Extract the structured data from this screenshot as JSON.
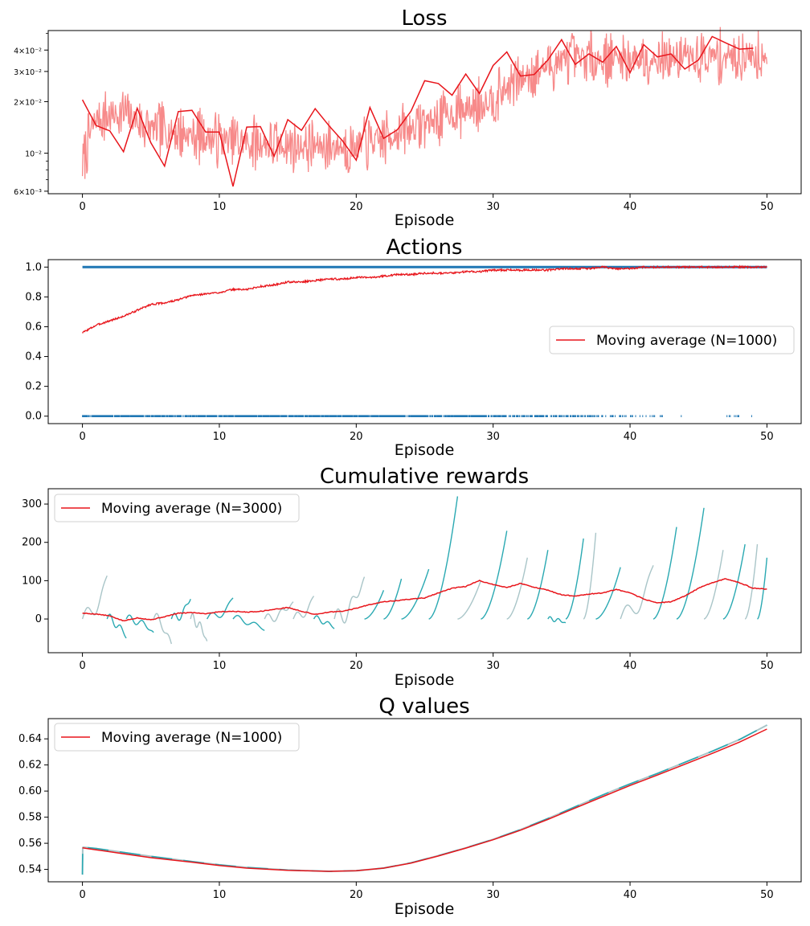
{
  "chart_data": [
    {
      "type": "line",
      "title": "Loss",
      "xlabel": "Episode",
      "ylabel": "",
      "yscale": "log",
      "xlim": [
        -2.5,
        52.5
      ],
      "ylim": [
        0.0058,
        0.052
      ],
      "xticks": [
        0,
        10,
        20,
        30,
        40,
        50
      ],
      "xtick_labels": [
        "0",
        "10",
        "20",
        "30",
        "40",
        "50"
      ],
      "yticks": [
        0.006,
        0.01,
        0.02,
        0.03,
        0.04
      ],
      "ytick_labels": [
        "6×10⁻³",
        "10⁻²",
        "2×10⁻²",
        "3×10⁻²",
        "4×10⁻²"
      ],
      "grid": false,
      "colors": {
        "raw": "#f78a8a",
        "avg": "#e8151b"
      },
      "series": [
        {
          "style": "raw",
          "trend": [
            [
              0,
              0.0085
            ],
            [
              1,
              0.016
            ],
            [
              3,
              0.017
            ],
            [
              5,
              0.014
            ],
            [
              10,
              0.012
            ],
            [
              15,
              0.011
            ],
            [
              20,
              0.011
            ],
            [
              22,
              0.012
            ],
            [
              25,
              0.015
            ],
            [
              28,
              0.018
            ],
            [
              30,
              0.021
            ],
            [
              33,
              0.03
            ],
            [
              35,
              0.035
            ],
            [
              40,
              0.036
            ],
            [
              45,
              0.036
            ],
            [
              50,
              0.038
            ]
          ]
        },
        {
          "style": "avg",
          "x": [
            0,
            1,
            2,
            3,
            4,
            5,
            6,
            7,
            8,
            9,
            10,
            11,
            12,
            13,
            14,
            15,
            16,
            17,
            18,
            19,
            20,
            21,
            22,
            23,
            24,
            25,
            26,
            27,
            28,
            29,
            30,
            31,
            32,
            33,
            34,
            35,
            36,
            37,
            38,
            39,
            40,
            41,
            42,
            43,
            44,
            45,
            46,
            47,
            48,
            49
          ],
          "y": [
            0.0205,
            0.0145,
            0.0135,
            0.0102,
            0.0183,
            0.0115,
            0.0084,
            0.0175,
            0.0178,
            0.0133,
            0.0133,
            0.0064,
            0.0142,
            0.0143,
            0.0096,
            0.0157,
            0.0136,
            0.0182,
            0.0145,
            0.0118,
            0.0091,
            0.0185,
            0.0122,
            0.0137,
            0.0176,
            0.0265,
            0.0255,
            0.0218,
            0.029,
            0.0223,
            0.0325,
            0.039,
            0.0282,
            0.0288,
            0.035,
            0.046,
            0.033,
            0.038,
            0.034,
            0.042,
            0.0295,
            0.043,
            0.0365,
            0.038,
            0.031,
            0.035,
            0.048,
            0.044,
            0.0405,
            0.041
          ]
        }
      ]
    },
    {
      "type": "scatter",
      "title": "Actions",
      "xlabel": "Episode",
      "ylabel": "",
      "xlim": [
        -2.5,
        52.5
      ],
      "ylim": [
        -0.05,
        1.05
      ],
      "xticks": [
        0,
        10,
        20,
        30,
        40,
        50
      ],
      "xtick_labels": [
        "0",
        "10",
        "20",
        "30",
        "40",
        "50"
      ],
      "yticks": [
        0,
        0.2,
        0.4,
        0.6,
        0.8,
        1.0
      ],
      "ytick_labels": [
        "0.0",
        "0.2",
        "0.4",
        "0.6",
        "0.8",
        "1.0"
      ],
      "grid": false,
      "legend": {
        "position": "right",
        "entries": [
          {
            "label": "Moving average (N=1000)",
            "color": "#e8151b"
          }
        ]
      },
      "colors": {
        "points": "#1f77b4",
        "avg": "#e8151b"
      },
      "series": [
        {
          "style": "points-high",
          "y": 1.0,
          "x_range": [
            0,
            50
          ]
        },
        {
          "style": "points-low",
          "y": 0.0,
          "x_range": [
            0,
            50
          ]
        },
        {
          "style": "avg",
          "x": [
            0,
            1,
            2,
            3,
            4,
            5,
            6,
            7,
            8,
            9,
            10,
            11,
            12,
            13,
            14,
            15,
            16,
            17,
            18,
            19,
            20,
            21,
            22,
            23,
            24,
            25,
            26,
            27,
            28,
            29,
            30,
            31,
            32,
            33,
            34,
            35,
            36,
            37,
            38,
            39,
            40,
            41,
            42,
            43,
            44,
            45,
            46,
            47,
            48,
            49,
            50
          ],
          "y": [
            0.56,
            0.61,
            0.64,
            0.67,
            0.71,
            0.75,
            0.76,
            0.78,
            0.81,
            0.82,
            0.83,
            0.85,
            0.85,
            0.87,
            0.88,
            0.9,
            0.9,
            0.91,
            0.92,
            0.92,
            0.93,
            0.93,
            0.94,
            0.95,
            0.95,
            0.96,
            0.96,
            0.96,
            0.97,
            0.97,
            0.98,
            0.98,
            0.98,
            0.98,
            0.98,
            0.99,
            0.99,
            0.99,
            1.0,
            0.99,
            0.99,
            1.0,
            1.0,
            1.0,
            1.0,
            1.0,
            1.0,
            1.0,
            1.0,
            1.0,
            1.0
          ]
        }
      ]
    },
    {
      "type": "line",
      "title": "Cumulative rewards",
      "xlabel": "Episode",
      "ylabel": "",
      "xlim": [
        -2.5,
        52.5
      ],
      "ylim": [
        -88,
        340
      ],
      "xticks": [
        0,
        10,
        20,
        30,
        40,
        50
      ],
      "xtick_labels": [
        "0",
        "10",
        "20",
        "30",
        "40",
        "50"
      ],
      "yticks": [
        0,
        100,
        200,
        300
      ],
      "ytick_labels": [
        "0",
        "100",
        "200",
        "300"
      ],
      "grid": false,
      "legend": {
        "position": "top-left",
        "entries": [
          {
            "label": "Moving average (N=3000)",
            "color": "#e8151b"
          }
        ]
      },
      "colors": {
        "teal": "#2aa9b2",
        "gray": "#a9c5c8",
        "avg": "#e8151b"
      },
      "episodes": [
        {
          "start": 0,
          "end": 1.8,
          "color": "gray",
          "shape": "wave",
          "end_value": 113
        },
        {
          "start": 1.8,
          "end": 3.2,
          "color": "teal",
          "shape": "wave",
          "end_value": -50
        },
        {
          "start": 3.2,
          "end": 5.2,
          "color": "teal",
          "shape": "wave",
          "end_value": -35
        },
        {
          "start": 5.2,
          "end": 6.5,
          "color": "gray",
          "shape": "wave",
          "end_value": -65
        },
        {
          "start": 6.5,
          "end": 7.9,
          "color": "teal",
          "shape": "wave",
          "end_value": 52
        },
        {
          "start": 7.9,
          "end": 9.1,
          "color": "gray",
          "shape": "wave",
          "end_value": -58
        },
        {
          "start": 9.1,
          "end": 11.0,
          "color": "teal",
          "shape": "wave",
          "end_value": 55
        },
        {
          "start": 11.0,
          "end": 13.3,
          "color": "teal",
          "shape": "wave",
          "end_value": -30
        },
        {
          "start": 13.3,
          "end": 15.4,
          "color": "gray",
          "shape": "wave",
          "end_value": 45
        },
        {
          "start": 15.4,
          "end": 16.9,
          "color": "gray",
          "shape": "wave",
          "end_value": 60
        },
        {
          "start": 16.9,
          "end": 18.4,
          "color": "teal",
          "shape": "wave",
          "end_value": -25
        },
        {
          "start": 18.4,
          "end": 20.6,
          "color": "gray",
          "shape": "wave",
          "end_value": 110
        },
        {
          "start": 20.6,
          "end": 22.0,
          "color": "teal",
          "shape": "ramp",
          "end_value": 75
        },
        {
          "start": 22.0,
          "end": 23.3,
          "color": "teal",
          "shape": "ramp",
          "end_value": 105
        },
        {
          "start": 23.3,
          "end": 25.3,
          "color": "teal",
          "shape": "ramp",
          "end_value": 130
        },
        {
          "start": 25.3,
          "end": 27.4,
          "color": "teal",
          "shape": "ramp",
          "end_value": 320
        },
        {
          "start": 27.4,
          "end": 29.1,
          "color": "gray",
          "shape": "ramp",
          "end_value": 100
        },
        {
          "start": 29.1,
          "end": 31.0,
          "color": "teal",
          "shape": "ramp",
          "end_value": 230
        },
        {
          "start": 31.0,
          "end": 32.5,
          "color": "gray",
          "shape": "ramp",
          "end_value": 160
        },
        {
          "start": 32.5,
          "end": 34.0,
          "color": "teal",
          "shape": "ramp",
          "end_value": 180
        },
        {
          "start": 34.0,
          "end": 35.3,
          "color": "teal",
          "shape": "wave",
          "end_value": -10
        },
        {
          "start": 35.3,
          "end": 36.6,
          "color": "teal",
          "shape": "ramp",
          "end_value": 210
        },
        {
          "start": 36.6,
          "end": 37.5,
          "color": "gray",
          "shape": "ramp",
          "end_value": 225
        },
        {
          "start": 37.5,
          "end": 39.3,
          "color": "teal",
          "shape": "ramp",
          "end_value": 135
        },
        {
          "start": 39.3,
          "end": 41.7,
          "color": "gray",
          "shape": "wave",
          "end_value": 140
        },
        {
          "start": 41.7,
          "end": 43.4,
          "color": "teal",
          "shape": "ramp",
          "end_value": 240
        },
        {
          "start": 43.4,
          "end": 45.4,
          "color": "teal",
          "shape": "ramp",
          "end_value": 290
        },
        {
          "start": 45.4,
          "end": 46.8,
          "color": "gray",
          "shape": "ramp",
          "end_value": 180
        },
        {
          "start": 46.8,
          "end": 48.4,
          "color": "teal",
          "shape": "ramp",
          "end_value": 195
        },
        {
          "start": 48.4,
          "end": 49.3,
          "color": "gray",
          "shape": "ramp",
          "end_value": 195
        },
        {
          "start": 49.3,
          "end": 50.0,
          "color": "teal",
          "shape": "ramp",
          "end_value": 160
        }
      ],
      "moving_average": {
        "x": [
          0,
          1,
          2,
          3,
          4,
          5,
          6,
          7,
          8,
          9,
          10,
          11,
          12,
          13,
          14,
          15,
          16,
          17,
          18,
          19,
          20,
          21,
          22,
          23,
          24,
          25,
          26,
          27,
          28,
          29,
          30,
          31,
          32,
          33,
          34,
          35,
          36,
          37,
          38,
          39,
          40,
          41,
          42,
          43,
          44,
          45,
          46,
          47,
          48,
          49,
          50
        ],
        "y": [
          15,
          13,
          8,
          -5,
          3,
          -2,
          6,
          15,
          17,
          14,
          19,
          20,
          18,
          20,
          25,
          30,
          20,
          12,
          18,
          20,
          28,
          38,
          45,
          48,
          52,
          55,
          68,
          80,
          85,
          100,
          90,
          82,
          93,
          83,
          75,
          63,
          60,
          65,
          68,
          77,
          68,
          52,
          42,
          45,
          60,
          80,
          95,
          105,
          95,
          80,
          78
        ]
      }
    },
    {
      "type": "line",
      "title": "Q values",
      "xlabel": "Episode",
      "ylabel": "",
      "xlim": [
        -2.5,
        52.5
      ],
      "ylim": [
        0.5305,
        0.6555
      ],
      "xticks": [
        0,
        10,
        20,
        30,
        40,
        50
      ],
      "xtick_labels": [
        "0",
        "10",
        "20",
        "30",
        "40",
        "50"
      ],
      "yticks": [
        0.54,
        0.56,
        0.58,
        0.6,
        0.62,
        0.64
      ],
      "ytick_labels": [
        "0.54",
        "0.56",
        "0.58",
        "0.60",
        "0.62",
        "0.64"
      ],
      "grid": false,
      "legend": {
        "position": "top-left",
        "entries": [
          {
            "label": "Moving average (N=1000)",
            "color": "#e8151b"
          }
        ]
      },
      "colors": {
        "teal": "#2aa9b2",
        "gray": "#a9c5c8",
        "avg": "#e8151b"
      },
      "raw": {
        "x": [
          0,
          0.02,
          0.05,
          1,
          2,
          3,
          5,
          8,
          10,
          12,
          15,
          18,
          20,
          22,
          24,
          26,
          28,
          30,
          32,
          34,
          36,
          38,
          40,
          42,
          44,
          46,
          48,
          50
        ],
        "y": [
          0.536,
          0.556,
          0.557,
          0.556,
          0.5545,
          0.553,
          0.55,
          0.546,
          0.5435,
          0.5415,
          0.5395,
          0.5385,
          0.539,
          0.541,
          0.545,
          0.5505,
          0.5565,
          0.563,
          0.5705,
          0.579,
          0.588,
          0.597,
          0.6055,
          0.6135,
          0.622,
          0.6305,
          0.6395,
          0.6505
        ]
      },
      "moving_average": {
        "x": [
          0,
          1,
          2,
          3,
          5,
          8,
          10,
          12,
          15,
          18,
          20,
          22,
          24,
          26,
          28,
          30,
          32,
          34,
          36,
          38,
          40,
          42,
          44,
          46,
          48,
          50
        ],
        "y": [
          0.5565,
          0.555,
          0.5535,
          0.552,
          0.549,
          0.5455,
          0.543,
          0.541,
          0.5393,
          0.5385,
          0.539,
          0.541,
          0.5448,
          0.5503,
          0.5563,
          0.5627,
          0.57,
          0.5783,
          0.587,
          0.5957,
          0.6043,
          0.6123,
          0.6205,
          0.6288,
          0.6375,
          0.6475
        ]
      }
    }
  ]
}
